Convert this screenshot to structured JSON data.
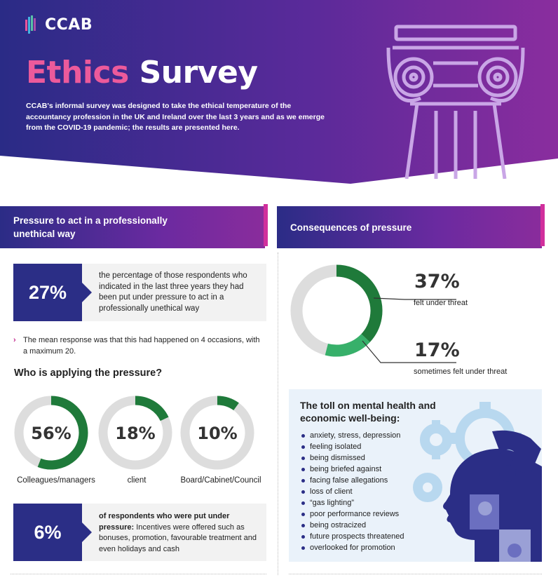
{
  "header": {
    "logo": "CCAB",
    "title_part1": "Ethics",
    "title_part2": "Survey",
    "intro": "CCAB's informal survey was designed to take the ethical temperature of the accountancy profession in the UK and Ireland over the last 3 years and as we emerge from the COVID-19 pandemic; the results are presented here."
  },
  "left": {
    "section_title": "Pressure to act in a professionally unethical way",
    "stat1": {
      "value": "27%",
      "text": "the percentage of those respondents who indicated in the last three years they had been put under pressure to act in a professionally unethical way"
    },
    "note": "The mean response was that this had happened on 4 occasions, with a maximum 20.",
    "who_title": "Who is applying the pressure?",
    "donuts": [
      {
        "label": "Colleagues/managers",
        "pct_text": "56%",
        "value": 56
      },
      {
        "label": "client",
        "pct_text": "18%",
        "value": 18
      },
      {
        "label": "Board/Cabinet/Council",
        "pct_text": "10%",
        "value": 10
      }
    ],
    "stat2": {
      "value": "6%",
      "bold": "of respondents who were put under pressure:",
      "text": " Incentives were offered such as bonuses, promotion, favourable treatment and even holidays and cash"
    }
  },
  "right": {
    "section_title": "Consequences of pressure",
    "threat": {
      "pct_text": "37%",
      "value": 37,
      "label": "felt under threat"
    },
    "sometimes": {
      "pct_text": "17%",
      "value": 17,
      "label": "sometimes felt under threat"
    },
    "mental": {
      "title": "The toll on mental health and economic well-being:",
      "items": [
        "anxiety, stress, depression",
        "feeling isolated",
        "being dismissed",
        "being briefed against",
        "facing false allegations",
        "loss of client",
        "“gas lighting”",
        "poor performance reviews",
        "being ostracized",
        "future prospects threatened",
        "overlooked for promotion"
      ]
    }
  },
  "colors": {
    "navy": "#2b2e86",
    "purple": "#7a2a9e",
    "pink": "#ec5a9b",
    "dark_green": "#1f7a3a",
    "light_green": "#37b06a",
    "grey_ring": "#dddddd"
  }
}
